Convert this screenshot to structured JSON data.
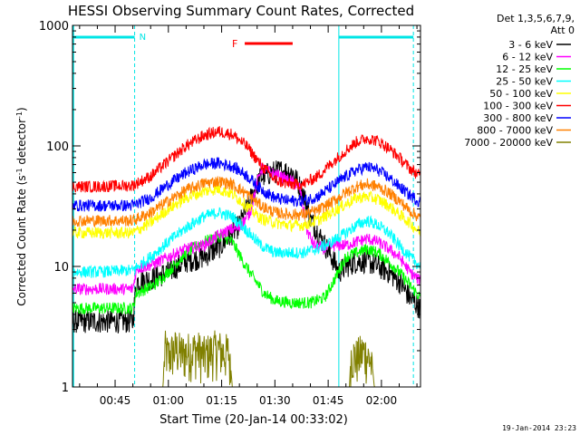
{
  "chart_data": {
    "type": "line",
    "title": "HESSI Observing Summary Count Rates, Corrected",
    "xlabel": "Start Time (20-Jan-14 00:33:02)",
    "ylabel": "Corrected Count Rate (s⁻¹ detector⁻¹)",
    "ylabel_main": "Corrected Count Rate (s",
    "ylabel_sup1": "-1",
    "ylabel_mid": " detector",
    "ylabel_sup2": "-1",
    "ylabel_end": ")",
    "x_range_min": [
      33.0,
      131.0
    ],
    "y_scale": "log",
    "ylim": [
      1,
      1000
    ],
    "x_ticks": [
      {
        "min": 45,
        "label": "00:45"
      },
      {
        "min": 60,
        "label": "01:00"
      },
      {
        "min": 75,
        "label": "01:15"
      },
      {
        "min": 90,
        "label": "01:30"
      },
      {
        "min": 105,
        "label": "01:45"
      },
      {
        "min": 120,
        "label": "02:00"
      }
    ],
    "y_ticks": [
      {
        "value": 1,
        "label": "1"
      },
      {
        "value": 10,
        "label": "10"
      },
      {
        "value": 100,
        "label": "100"
      },
      {
        "value": 1000,
        "label": "1000"
      }
    ],
    "legend": {
      "header_line1": "Det 1,3,5,6,7,9,",
      "header_line2": "Att 0",
      "placement": "right"
    },
    "annotations": {
      "night_label": "N",
      "flare_label": "F",
      "night_bars_min": [
        [
          33.0,
          50.5
        ],
        [
          108.0,
          129.0
        ]
      ],
      "night_boundaries_min": [
        50.5,
        108.0,
        129.0
      ],
      "flare_bar_min": [
        81.5,
        95.0
      ],
      "colors": {
        "night": "#00e5e5",
        "flare": "#ff0000"
      }
    },
    "series": [
      {
        "name": "3 - 6 keV",
        "color": "#000000",
        "points": [
          [
            33,
            3.5
          ],
          [
            40,
            3.5
          ],
          [
            50,
            3.5
          ],
          [
            51,
            7.5
          ],
          [
            56,
            8
          ],
          [
            60,
            9
          ],
          [
            65,
            11
          ],
          [
            70,
            12
          ],
          [
            75,
            15
          ],
          [
            80,
            22
          ],
          [
            83,
            35
          ],
          [
            86,
            55
          ],
          [
            89,
            60
          ],
          [
            92,
            62
          ],
          [
            95,
            60
          ],
          [
            98,
            40
          ],
          [
            100,
            25
          ],
          [
            103,
            17
          ],
          [
            106,
            12
          ],
          [
            108,
            9
          ],
          [
            110,
            10
          ],
          [
            113,
            11
          ],
          [
            116,
            11
          ],
          [
            119,
            10
          ],
          [
            122,
            9
          ],
          [
            125,
            7.5
          ],
          [
            128,
            5.5
          ],
          [
            131,
            4.5
          ]
        ]
      },
      {
        "name": "6 - 12 keV",
        "color": "#ff00ff",
        "points": [
          [
            33,
            6.5
          ],
          [
            40,
            6.5
          ],
          [
            50,
            6.5
          ],
          [
            51,
            9.5
          ],
          [
            56,
            10.5
          ],
          [
            60,
            12
          ],
          [
            65,
            14
          ],
          [
            70,
            15
          ],
          [
            74,
            18
          ],
          [
            77,
            20
          ],
          [
            80,
            21
          ],
          [
            83,
            28
          ],
          [
            86,
            65
          ],
          [
            89,
            60
          ],
          [
            92,
            55
          ],
          [
            95,
            50
          ],
          [
            97,
            45
          ],
          [
            99,
            20
          ],
          [
            101,
            15
          ],
          [
            104,
            14
          ],
          [
            107,
            15
          ],
          [
            110,
            15
          ],
          [
            113,
            16
          ],
          [
            116,
            17
          ],
          [
            119,
            16
          ],
          [
            122,
            14
          ],
          [
            125,
            12
          ],
          [
            128,
            9
          ],
          [
            131,
            7.5
          ]
        ]
      },
      {
        "name": "12 - 25 keV",
        "color": "#00ff00",
        "points": [
          [
            33,
            4.5
          ],
          [
            40,
            4.5
          ],
          [
            50,
            4.5
          ],
          [
            51,
            6
          ],
          [
            56,
            7
          ],
          [
            60,
            9
          ],
          [
            65,
            13
          ],
          [
            70,
            16
          ],
          [
            75,
            18
          ],
          [
            78,
            16
          ],
          [
            81,
            11
          ],
          [
            84,
            8
          ],
          [
            87,
            6
          ],
          [
            90,
            5.2
          ],
          [
            95,
            5
          ],
          [
            100,
            5
          ],
          [
            104,
            5.5
          ],
          [
            107,
            8
          ],
          [
            110,
            12
          ],
          [
            113,
            13
          ],
          [
            116,
            14
          ],
          [
            119,
            13
          ],
          [
            122,
            11
          ],
          [
            125,
            9
          ],
          [
            128,
            7
          ],
          [
            131,
            5.5
          ]
        ]
      },
      {
        "name": "25 - 50 keV",
        "color": "#00ffff",
        "points": [
          [
            33,
            9
          ],
          [
            40,
            9
          ],
          [
            50,
            9.3
          ],
          [
            55,
            12
          ],
          [
            60,
            16
          ],
          [
            65,
            21
          ],
          [
            70,
            26
          ],
          [
            74,
            28
          ],
          [
            78,
            26
          ],
          [
            82,
            20
          ],
          [
            86,
            15
          ],
          [
            90,
            13
          ],
          [
            94,
            13
          ],
          [
            98,
            13
          ],
          [
            102,
            14
          ],
          [
            106,
            16
          ],
          [
            110,
            19
          ],
          [
            113,
            22
          ],
          [
            116,
            24
          ],
          [
            119,
            22
          ],
          [
            122,
            19
          ],
          [
            125,
            15
          ],
          [
            128,
            12
          ],
          [
            131,
            10
          ]
        ]
      },
      {
        "name": "50 - 100 keV",
        "color": "#ffff00",
        "points": [
          [
            33,
            19
          ],
          [
            40,
            19
          ],
          [
            50,
            19
          ],
          [
            55,
            23
          ],
          [
            60,
            30
          ],
          [
            65,
            37
          ],
          [
            70,
            42
          ],
          [
            74,
            44
          ],
          [
            78,
            40
          ],
          [
            82,
            32
          ],
          [
            86,
            25
          ],
          [
            90,
            23
          ],
          [
            94,
            22
          ],
          [
            98,
            22
          ],
          [
            102,
            24
          ],
          [
            106,
            28
          ],
          [
            110,
            33
          ],
          [
            113,
            37
          ],
          [
            116,
            38
          ],
          [
            119,
            36
          ],
          [
            122,
            32
          ],
          [
            125,
            27
          ],
          [
            128,
            23
          ],
          [
            131,
            19
          ]
        ]
      },
      {
        "name": "100 - 300 keV",
        "color": "#ff0000",
        "points": [
          [
            33,
            46
          ],
          [
            40,
            46
          ],
          [
            50,
            47
          ],
          [
            55,
            56
          ],
          [
            60,
            75
          ],
          [
            65,
            100
          ],
          [
            70,
            122
          ],
          [
            74,
            132
          ],
          [
            78,
            125
          ],
          [
            82,
            100
          ],
          [
            86,
            70
          ],
          [
            90,
            52
          ],
          [
            94,
            48
          ],
          [
            98,
            48
          ],
          [
            102,
            56
          ],
          [
            106,
            72
          ],
          [
            110,
            92
          ],
          [
            113,
            108
          ],
          [
            116,
            116
          ],
          [
            119,
            110
          ],
          [
            122,
            96
          ],
          [
            125,
            80
          ],
          [
            128,
            65
          ],
          [
            131,
            56
          ]
        ]
      },
      {
        "name": "300 - 800 keV",
        "color": "#0000ff",
        "points": [
          [
            33,
            32
          ],
          [
            40,
            32
          ],
          [
            50,
            32
          ],
          [
            55,
            37
          ],
          [
            60,
            48
          ],
          [
            65,
            60
          ],
          [
            70,
            70
          ],
          [
            74,
            72
          ],
          [
            78,
            68
          ],
          [
            82,
            57
          ],
          [
            86,
            44
          ],
          [
            90,
            37
          ],
          [
            94,
            35
          ],
          [
            98,
            35
          ],
          [
            102,
            38
          ],
          [
            106,
            46
          ],
          [
            110,
            56
          ],
          [
            113,
            63
          ],
          [
            116,
            67
          ],
          [
            119,
            63
          ],
          [
            122,
            55
          ],
          [
            125,
            46
          ],
          [
            128,
            39
          ],
          [
            131,
            34
          ]
        ]
      },
      {
        "name": "800 - 7000 keV",
        "color": "#ff8000",
        "points": [
          [
            33,
            24
          ],
          [
            40,
            24
          ],
          [
            50,
            24
          ],
          [
            55,
            28
          ],
          [
            60,
            35
          ],
          [
            65,
            43
          ],
          [
            70,
            49
          ],
          [
            74,
            51
          ],
          [
            78,
            48
          ],
          [
            82,
            40
          ],
          [
            86,
            32
          ],
          [
            90,
            28
          ],
          [
            94,
            27
          ],
          [
            98,
            27
          ],
          [
            102,
            29
          ],
          [
            106,
            34
          ],
          [
            110,
            41
          ],
          [
            113,
            46
          ],
          [
            116,
            48
          ],
          [
            119,
            46
          ],
          [
            122,
            41
          ],
          [
            125,
            35
          ],
          [
            128,
            29
          ],
          [
            131,
            25
          ]
        ]
      },
      {
        "name": "7000 - 20000 keV",
        "color": "#808000",
        "points": [
          [
            33,
            1
          ],
          [
            58.5,
            1
          ],
          [
            59,
            2.5
          ],
          [
            60,
            2.2
          ],
          [
            62,
            2.5
          ],
          [
            64,
            2.3
          ],
          [
            66,
            2.4
          ],
          [
            68,
            2.5
          ],
          [
            70,
            2.2
          ],
          [
            72,
            2.4
          ],
          [
            74,
            2.5
          ],
          [
            76,
            2.3
          ],
          [
            77,
            2.4
          ],
          [
            78,
            1
          ],
          [
            111,
            1
          ],
          [
            111.5,
            2.3
          ],
          [
            113,
            2.1
          ],
          [
            115,
            2.4
          ],
          [
            117,
            2.0
          ],
          [
            118,
            1
          ],
          [
            131,
            1
          ]
        ]
      }
    ]
  },
  "footer": {
    "timestamp": "19-Jan-2014 23:23"
  }
}
